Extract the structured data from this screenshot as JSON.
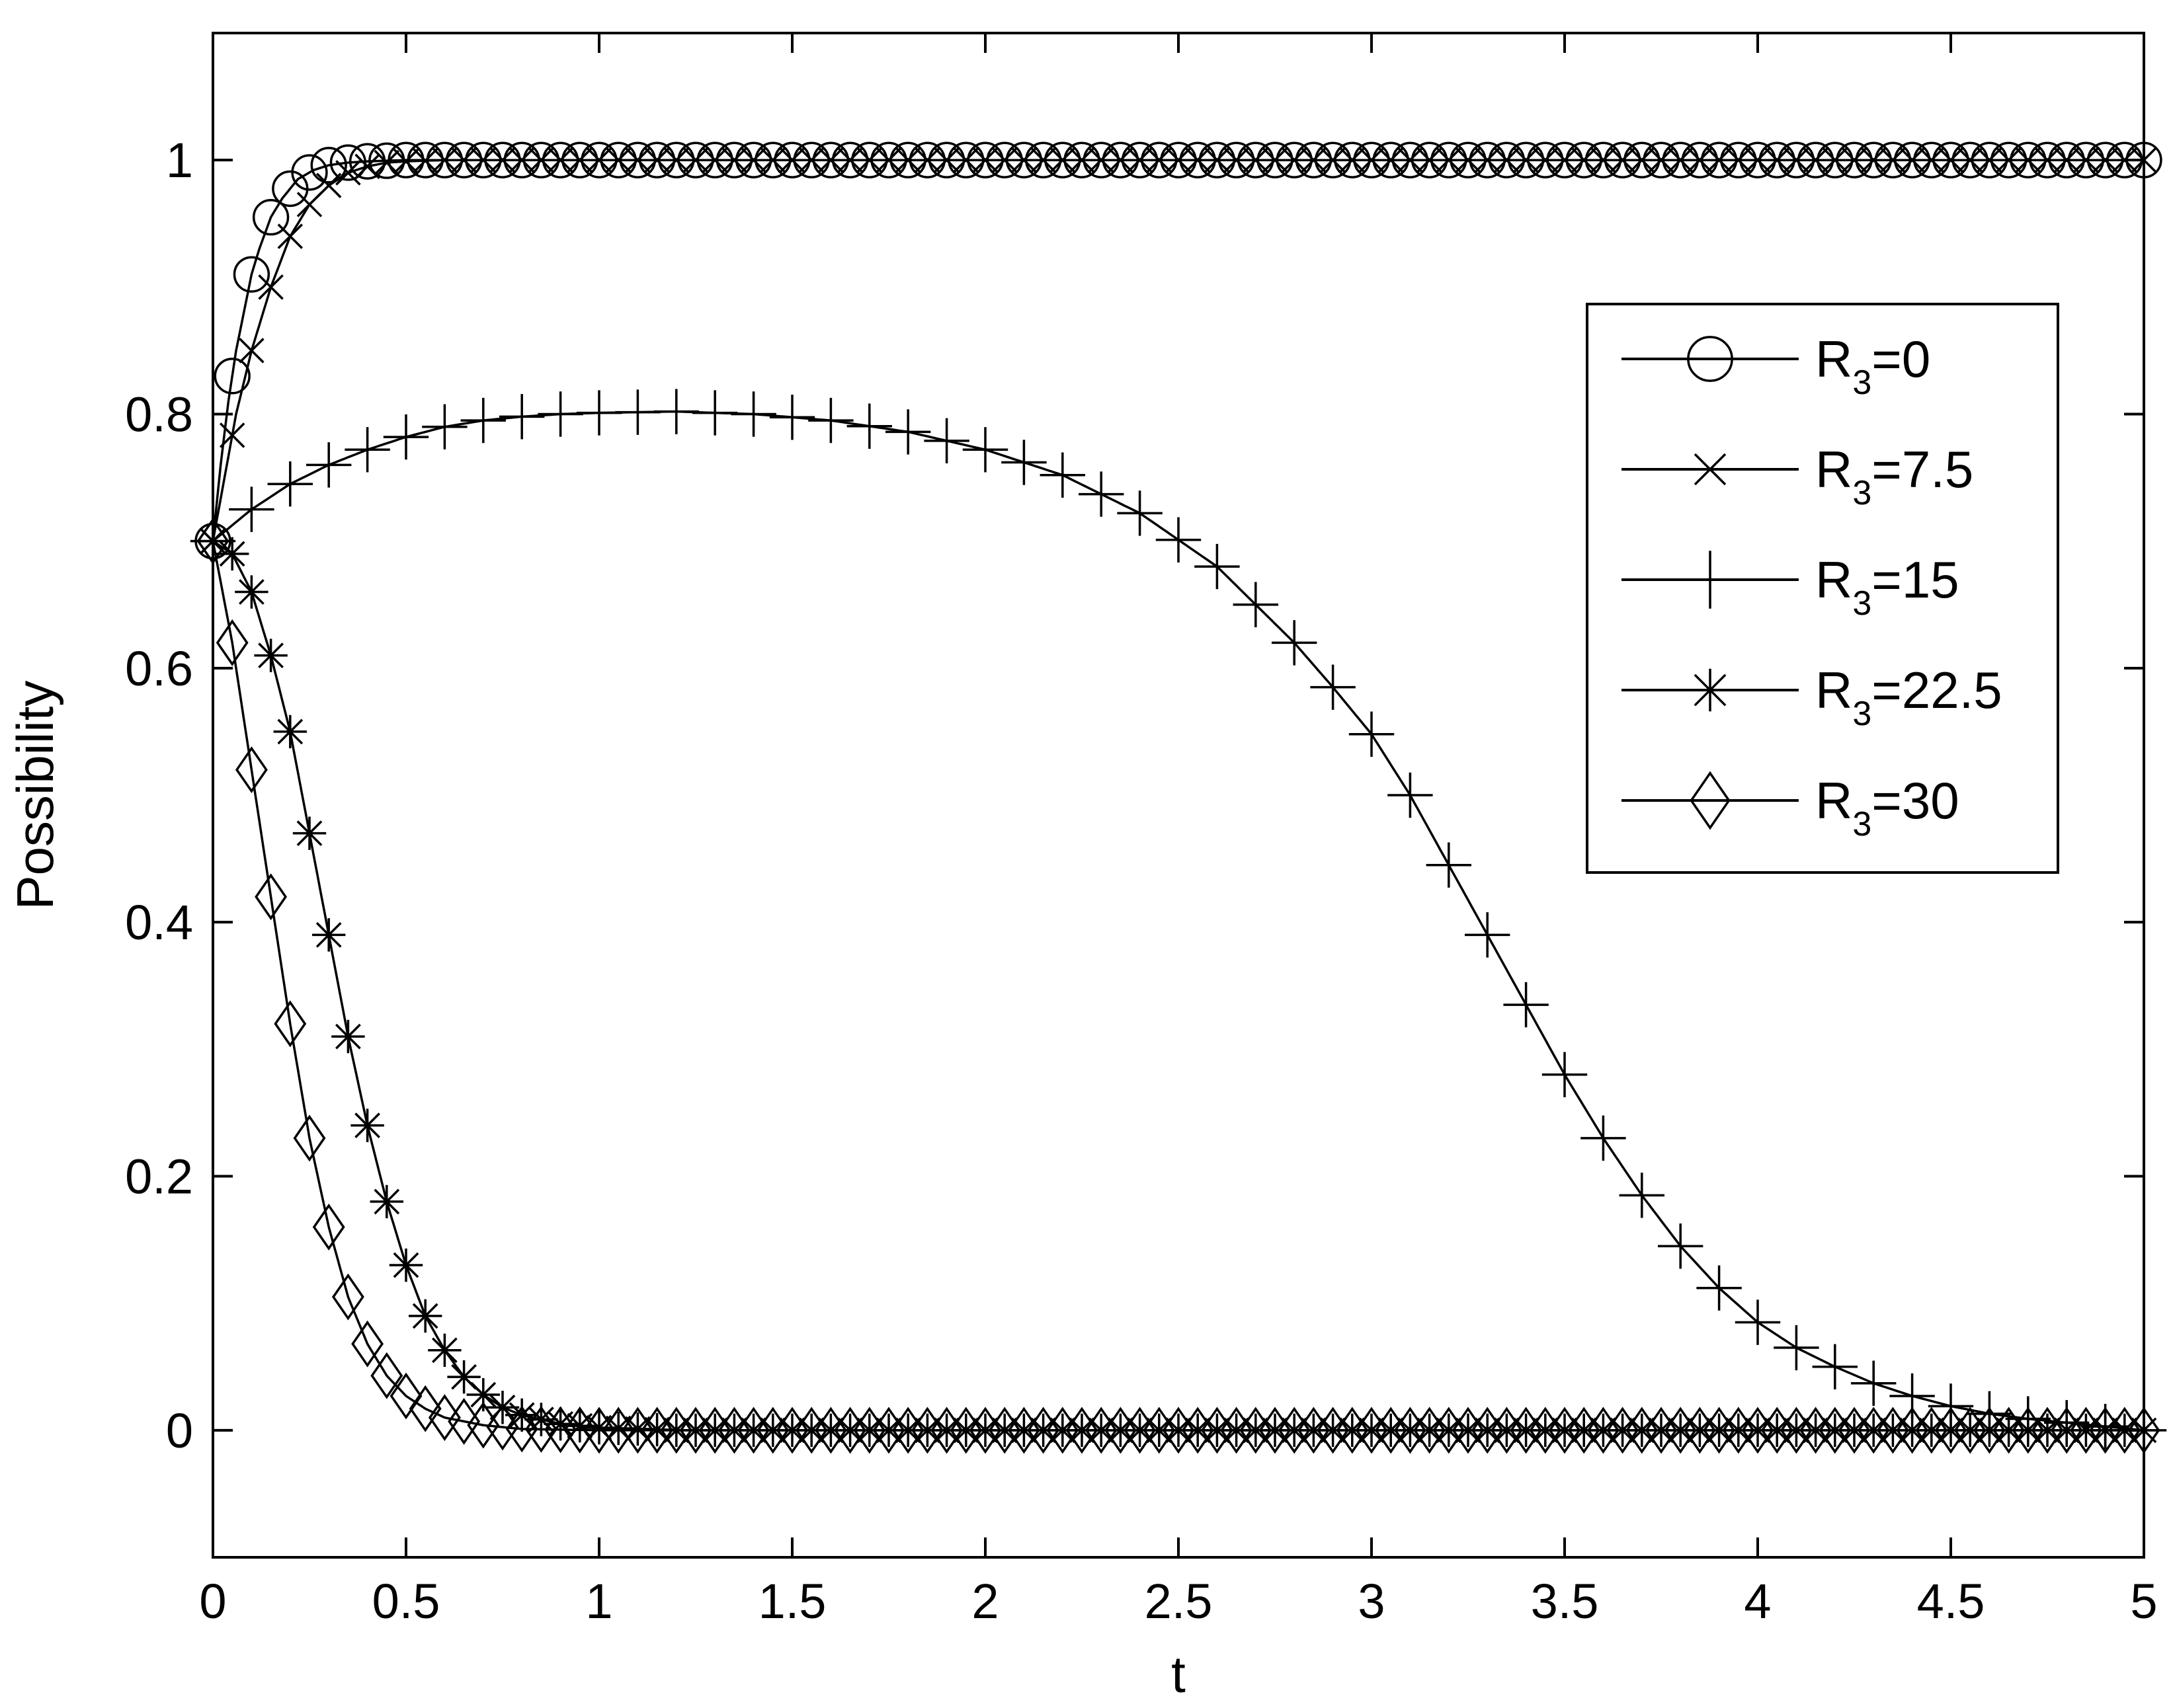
{
  "chart_data": {
    "type": "line",
    "xlabel": "t",
    "ylabel": "Possibility",
    "xlim": [
      0,
      5
    ],
    "ylim": [
      -0.1,
      1.1
    ],
    "xticks": [
      "0",
      "0.5",
      "1",
      "1.5",
      "2",
      "2.5",
      "3",
      "3.5",
      "4",
      "4.5",
      "5"
    ],
    "yticks": [
      "0",
      "0.2",
      "0.4",
      "0.6",
      "0.8",
      "1"
    ],
    "grid": false,
    "legend_position": "top-right",
    "legend_symbol": "R",
    "legend_subscript": "3",
    "series": [
      {
        "name": "R3=0",
        "label_value": "=0",
        "marker": "circle",
        "x": [
          0,
          0.02,
          0.04,
          0.06,
          0.08,
          0.1,
          0.12,
          0.15,
          0.18,
          0.22,
          0.26,
          0.3,
          0.35,
          0.4,
          0.5,
          0.6,
          1,
          2,
          3,
          4,
          5
        ],
        "y": [
          0.7,
          0.76,
          0.81,
          0.85,
          0.88,
          0.91,
          0.93,
          0.955,
          0.97,
          0.985,
          0.992,
          0.996,
          0.998,
          0.999,
          1.0,
          1.0,
          1.0,
          1.0,
          1.0,
          1.0,
          1.0
        ]
      },
      {
        "name": "R3=7.5",
        "label_value": "=7.5",
        "marker": "x",
        "x": [
          0,
          0.03,
          0.06,
          0.1,
          0.15,
          0.2,
          0.25,
          0.3,
          0.35,
          0.4,
          0.45,
          0.5,
          0.6,
          0.8,
          1,
          2,
          3,
          4,
          5
        ],
        "y": [
          0.7,
          0.75,
          0.8,
          0.85,
          0.9,
          0.94,
          0.965,
          0.98,
          0.99,
          0.995,
          0.998,
          0.999,
          1.0,
          1.0,
          1.0,
          1.0,
          1.0,
          1.0,
          1.0
        ]
      },
      {
        "name": "R3=15",
        "label_value": "=15",
        "marker": "plus",
        "x": [
          0,
          0.1,
          0.2,
          0.3,
          0.4,
          0.5,
          0.6,
          0.7,
          0.8,
          0.9,
          1.0,
          1.2,
          1.4,
          1.6,
          1.8,
          2.0,
          2.2,
          2.4,
          2.6,
          2.8,
          2.9,
          3.0,
          3.1,
          3.2,
          3.3,
          3.4,
          3.5,
          3.6,
          3.7,
          3.8,
          3.9,
          4.0,
          4.1,
          4.2,
          4.3,
          4.4,
          4.5,
          4.6,
          4.7,
          4.8,
          4.9,
          5.0
        ],
        "y": [
          0.7,
          0.725,
          0.745,
          0.76,
          0.772,
          0.782,
          0.79,
          0.795,
          0.798,
          0.8,
          0.801,
          0.802,
          0.8,
          0.795,
          0.786,
          0.772,
          0.752,
          0.722,
          0.68,
          0.62,
          0.585,
          0.548,
          0.5,
          0.445,
          0.39,
          0.335,
          0.28,
          0.23,
          0.185,
          0.145,
          0.112,
          0.085,
          0.065,
          0.05,
          0.037,
          0.027,
          0.019,
          0.013,
          0.009,
          0.006,
          0.003,
          0.0
        ]
      },
      {
        "name": "R3=22.5",
        "label_value": "=22.5",
        "marker": "star",
        "x": [
          0,
          0.05,
          0.1,
          0.15,
          0.2,
          0.25,
          0.3,
          0.35,
          0.4,
          0.45,
          0.5,
          0.55,
          0.6,
          0.65,
          0.7,
          0.75,
          0.8,
          0.9,
          1.0,
          1.2,
          1.5,
          2,
          3,
          4,
          5
        ],
        "y": [
          0.7,
          0.69,
          0.66,
          0.61,
          0.55,
          0.47,
          0.39,
          0.31,
          0.24,
          0.18,
          0.13,
          0.09,
          0.063,
          0.042,
          0.028,
          0.018,
          0.012,
          0.005,
          0.002,
          0.0,
          0.0,
          0.0,
          0.0,
          0.0,
          0.0
        ]
      },
      {
        "name": "R3=30",
        "label_value": "=30",
        "marker": "diamond",
        "x": [
          0,
          0.05,
          0.1,
          0.15,
          0.2,
          0.25,
          0.3,
          0.35,
          0.4,
          0.45,
          0.5,
          0.55,
          0.6,
          0.7,
          0.8,
          1.0,
          1.5,
          2,
          3,
          4,
          5
        ],
        "y": [
          0.7,
          0.62,
          0.52,
          0.42,
          0.32,
          0.23,
          0.16,
          0.105,
          0.068,
          0.043,
          0.027,
          0.017,
          0.01,
          0.004,
          0.001,
          0.0,
          0.0,
          0.0,
          0.0,
          0.0,
          0.0
        ]
      }
    ]
  }
}
